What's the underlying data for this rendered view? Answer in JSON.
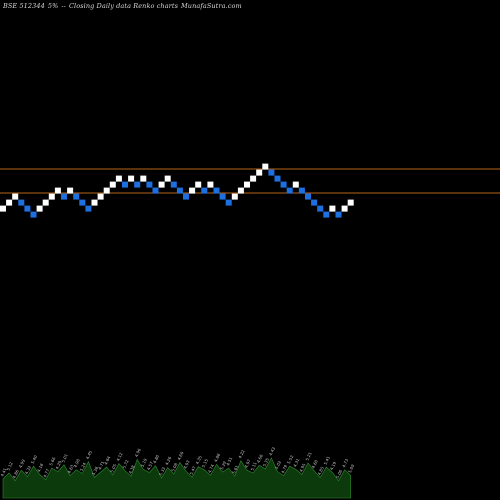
{
  "header": {
    "exchange_symbol": "BSE 512344",
    "change": "5%",
    "separator": "--",
    "chart_caption": "Closing Daily data Renko charts",
    "site": "MunafaSutra.com"
  },
  "colors": {
    "background": "#000000",
    "up_brick": "#ffffff",
    "down_brick": "#1e6fe0",
    "level_line": "#b8631a",
    "volume_fill": "#0c3a0c",
    "volume_stroke": "#2e8b2e"
  },
  "chart_data": {
    "type": "renko",
    "y_levels": {
      "min": 0,
      "max": 100
    },
    "levels": [
      {
        "price": 64
      },
      {
        "price": 56
      }
    ],
    "bricks": [
      {
        "d": "up",
        "v": 50.8
      },
      {
        "d": "up",
        "v": 52.8
      },
      {
        "d": "up",
        "v": 54.8
      },
      {
        "d": "down",
        "v": 52.8
      },
      {
        "d": "down",
        "v": 50.8
      },
      {
        "d": "down",
        "v": 48.8
      },
      {
        "d": "up",
        "v": 50.8
      },
      {
        "d": "up",
        "v": 52.8
      },
      {
        "d": "up",
        "v": 54.8
      },
      {
        "d": "up",
        "v": 56.8
      },
      {
        "d": "down",
        "v": 54.8
      },
      {
        "d": "up",
        "v": 56.8
      },
      {
        "d": "down",
        "v": 54.8
      },
      {
        "d": "down",
        "v": 52.8
      },
      {
        "d": "down",
        "v": 50.8
      },
      {
        "d": "up",
        "v": 52.8
      },
      {
        "d": "up",
        "v": 54.8
      },
      {
        "d": "up",
        "v": 56.8
      },
      {
        "d": "up",
        "v": 58.8
      },
      {
        "d": "up",
        "v": 60.8
      },
      {
        "d": "down",
        "v": 58.8
      },
      {
        "d": "up",
        "v": 60.8
      },
      {
        "d": "down",
        "v": 58.8
      },
      {
        "d": "up",
        "v": 60.8
      },
      {
        "d": "down",
        "v": 58.8
      },
      {
        "d": "down",
        "v": 56.8
      },
      {
        "d": "up",
        "v": 58.8
      },
      {
        "d": "up",
        "v": 60.8
      },
      {
        "d": "down",
        "v": 58.8
      },
      {
        "d": "down",
        "v": 56.8
      },
      {
        "d": "down",
        "v": 54.8
      },
      {
        "d": "up",
        "v": 56.8
      },
      {
        "d": "up",
        "v": 58.8
      },
      {
        "d": "down",
        "v": 56.8
      },
      {
        "d": "up",
        "v": 58.8
      },
      {
        "d": "down",
        "v": 56.8
      },
      {
        "d": "down",
        "v": 54.8
      },
      {
        "d": "down",
        "v": 52.8
      },
      {
        "d": "up",
        "v": 54.8
      },
      {
        "d": "up",
        "v": 56.8
      },
      {
        "d": "up",
        "v": 58.8
      },
      {
        "d": "up",
        "v": 60.8
      },
      {
        "d": "up",
        "v": 62.8
      },
      {
        "d": "up",
        "v": 64.8
      },
      {
        "d": "down",
        "v": 62.8
      },
      {
        "d": "down",
        "v": 60.8
      },
      {
        "d": "down",
        "v": 58.8
      },
      {
        "d": "down",
        "v": 56.8
      },
      {
        "d": "up",
        "v": 58.8
      },
      {
        "d": "down",
        "v": 56.8
      },
      {
        "d": "down",
        "v": 54.8
      },
      {
        "d": "down",
        "v": 52.8
      },
      {
        "d": "down",
        "v": 50.8
      },
      {
        "d": "down",
        "v": 48.8
      },
      {
        "d": "up",
        "v": 50.8
      },
      {
        "d": "down",
        "v": 48.8
      },
      {
        "d": "up",
        "v": 50.8
      },
      {
        "d": "up",
        "v": 52.8
      }
    ],
    "volume": [
      42,
      55,
      38,
      61,
      47,
      70,
      52,
      40,
      66,
      58,
      73,
      49,
      62,
      54,
      80,
      45,
      57,
      68,
      51,
      76,
      60,
      48,
      85,
      63,
      56,
      71,
      44,
      67,
      53,
      78,
      59,
      46,
      69,
      62,
      50,
      74,
      57,
      66,
      48,
      82,
      61,
      55,
      72,
      64,
      88,
      58,
      49,
      70,
      63,
      52,
      77,
      60,
      45,
      68,
      56,
      38,
      62,
      50
    ],
    "volume_labels": [
      "4.41",
      "5.12",
      "4.86",
      "4.99",
      "4.32",
      "5.40",
      "4.18",
      "4.77",
      "5.66",
      "4.29",
      "5.01",
      "4.63",
      "4.90",
      "5.24",
      "4.45",
      "5.38",
      "4.71",
      "4.84",
      "5.05",
      "4.12",
      "5.72",
      "4.38",
      "4.96",
      "5.19",
      "4.57",
      "4.80",
      "5.33",
      "4.26",
      "5.08",
      "4.69",
      "4.93",
      "5.47",
      "4.35",
      "5.15",
      "4.74",
      "4.88",
      "5.29",
      "4.51",
      "5.61",
      "4.22",
      "4.97",
      "5.11",
      "4.66",
      "5.35",
      "4.43",
      "5.02",
      "4.79",
      "5.52",
      "4.31",
      "4.95",
      "5.21",
      "4.60",
      "4.85",
      "5.41",
      "4.19",
      "5.06",
      "4.73",
      "5.09"
    ]
  }
}
